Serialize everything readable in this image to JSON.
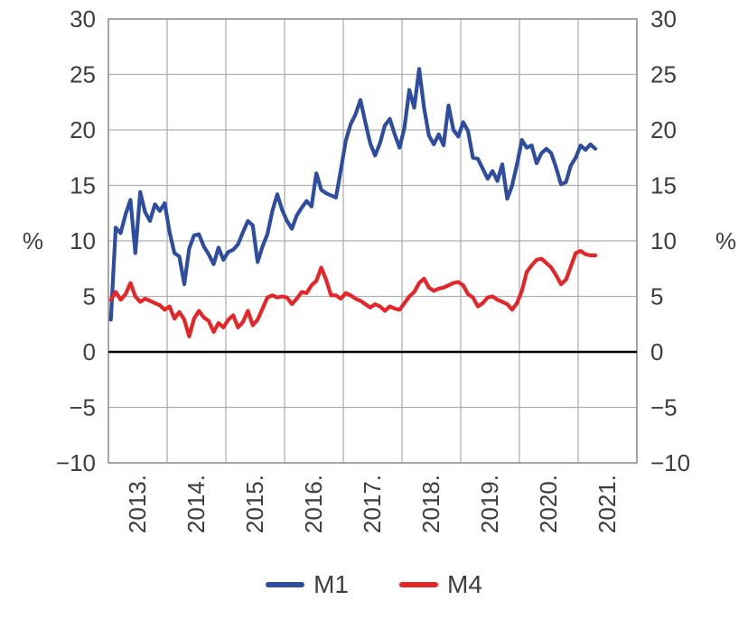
{
  "chart_data": {
    "type": "line",
    "title": "",
    "ylabel_left": "%",
    "ylabel_right": "%",
    "ylim": [
      -10,
      30
    ],
    "ytick_values": [
      30,
      25,
      20,
      15,
      10,
      5,
      0,
      -5,
      -10
    ],
    "ytick_labels": [
      "30",
      "25",
      "20",
      "15",
      "10",
      "5",
      "0",
      "−5",
      "−10"
    ],
    "xlabels": [
      "2013.",
      "2014.",
      "2015.",
      "2016.",
      "2017.",
      "2018.",
      "2019.",
      "2020.",
      "2021."
    ],
    "x_start": "2013-01",
    "frequency": "monthly",
    "grid": true,
    "zero_line": true,
    "legend_position": "bottom",
    "series": [
      {
        "name": "M1",
        "color": "#2f4da0",
        "values": [
          2.9,
          11.2,
          10.7,
          12.4,
          13.7,
          8.9,
          14.4,
          12.6,
          11.8,
          13.3,
          12.7,
          13.4,
          10.8,
          8.9,
          8.6,
          6.1,
          9.3,
          10.5,
          10.6,
          9.5,
          8.8,
          7.9,
          9.4,
          8.3,
          9.0,
          9.2,
          9.7,
          10.8,
          11.8,
          11.4,
          8.1,
          9.5,
          10.6,
          12.7,
          14.2,
          12.8,
          11.8,
          11.1,
          12.3,
          13.0,
          13.6,
          13.1,
          16.1,
          14.6,
          14.3,
          14.1,
          13.9,
          16.4,
          19.0,
          20.5,
          21.4,
          22.7,
          20.7,
          18.8,
          17.7,
          18.8,
          20.4,
          21.0,
          19.6,
          18.4,
          20.2,
          23.6,
          22.0,
          25.5,
          22.0,
          19.5,
          18.7,
          19.6,
          18.6,
          22.2,
          20.0,
          19.4,
          20.7,
          19.9,
          17.5,
          17.4,
          16.5,
          15.6,
          16.3,
          15.4,
          16.9,
          13.8,
          15.0,
          16.9,
          19.1,
          18.4,
          18.6,
          17.0,
          17.9,
          18.3,
          17.9,
          16.6,
          15.1,
          15.3,
          16.8,
          17.5,
          18.6,
          18.2,
          18.7,
          18.3
        ]
      },
      {
        "name": "M4",
        "color": "#e62529",
        "values": [
          4.7,
          5.4,
          4.7,
          5.2,
          6.2,
          5.0,
          4.5,
          4.8,
          4.6,
          4.4,
          4.2,
          3.8,
          4.1,
          3.0,
          3.6,
          2.9,
          1.4,
          3.0,
          3.7,
          3.1,
          2.8,
          1.8,
          2.6,
          2.2,
          2.9,
          3.3,
          2.2,
          2.7,
          3.7,
          2.4,
          2.9,
          3.9,
          4.9,
          5.1,
          4.9,
          5.0,
          4.9,
          4.3,
          4.8,
          5.4,
          5.3,
          6.0,
          6.4,
          7.6,
          6.5,
          5.1,
          5.1,
          4.8,
          5.3,
          5.1,
          4.8,
          4.6,
          4.3,
          4.0,
          4.3,
          4.1,
          3.7,
          4.1,
          3.9,
          3.8,
          4.4,
          5.0,
          5.4,
          6.2,
          6.6,
          5.8,
          5.5,
          5.7,
          5.8,
          6.0,
          6.2,
          6.3,
          6.0,
          5.2,
          4.9,
          4.1,
          4.4,
          4.9,
          5.0,
          4.7,
          4.5,
          4.3,
          3.8,
          4.4,
          5.5,
          7.2,
          7.8,
          8.3,
          8.4,
          8.0,
          7.6,
          6.9,
          6.1,
          6.5,
          7.7,
          8.9,
          9.1,
          8.8,
          8.7,
          8.7
        ]
      }
    ]
  },
  "colors": {
    "grid": "#b0b0b0",
    "border": "#8f8f8f",
    "zero_line": "#000000",
    "tick_text": "#3e3e3e"
  }
}
